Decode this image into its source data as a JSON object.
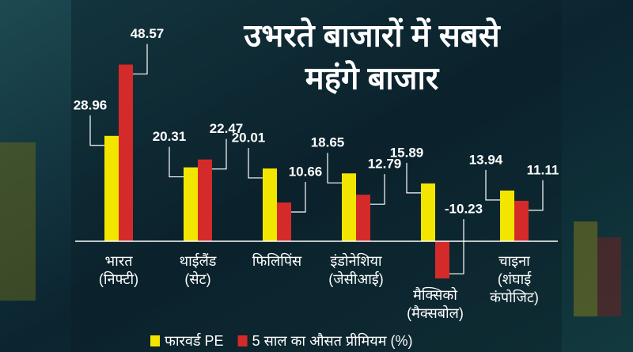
{
  "chart_data": {
    "type": "bar",
    "title": [
      "उभरते बाजारों में सबसे",
      "महंगे बाजार"
    ],
    "categories": [
      [
        "भारत",
        "(निफ्टी)"
      ],
      [
        "थाईलैंड",
        "(सेट)"
      ],
      [
        "फिलिपिंस"
      ],
      [
        "इंडोनेशिया",
        "(जेसीआई)"
      ],
      [
        "मैक्सिको",
        "(मैक्सबोल)"
      ],
      [
        "चाइना",
        "(शंघाई",
        "कंपोजिट)"
      ]
    ],
    "series": [
      {
        "name": "फारवर्ड PE",
        "color": "#f2e600",
        "values": [
          28.96,
          20.31,
          20.01,
          18.65,
          15.89,
          13.94
        ]
      },
      {
        "name": "5 साल का औसत प्रीमियम (%)",
        "color": "#d42a2a",
        "values": [
          48.57,
          22.47,
          10.66,
          12.79,
          -10.23,
          11.11
        ]
      }
    ]
  }
}
